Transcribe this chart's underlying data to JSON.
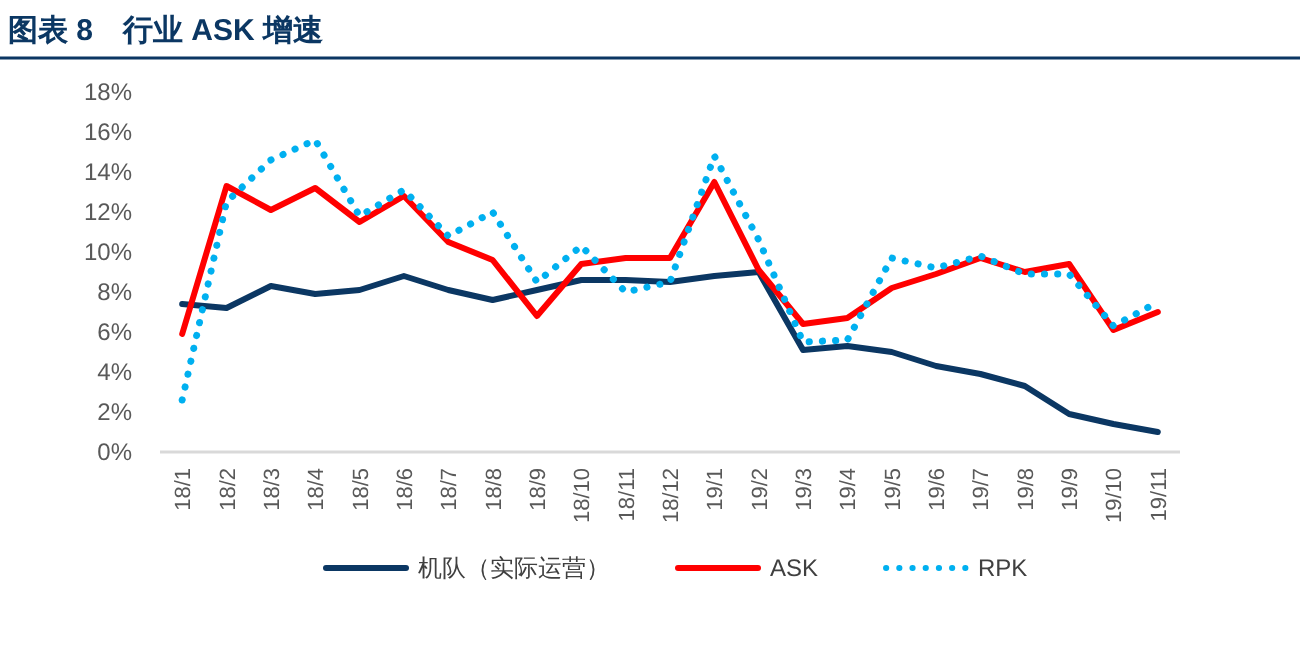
{
  "chart_data": {
    "type": "line",
    "title": "图表 8　行业 ASK 增速",
    "categories": [
      "18/1",
      "18/2",
      "18/3",
      "18/4",
      "18/5",
      "18/6",
      "18/7",
      "18/8",
      "18/9",
      "18/10",
      "18/11",
      "18/12",
      "19/1",
      "19/2",
      "19/3",
      "19/4",
      "19/5",
      "19/6",
      "19/7",
      "19/8",
      "19/9",
      "19/10",
      "19/11"
    ],
    "series": [
      {
        "name": "机队（实际运营）",
        "color": "#0b3763",
        "line_style": "solid",
        "values": [
          7.4,
          7.2,
          8.3,
          7.9,
          8.1,
          8.8,
          8.1,
          7.6,
          8.1,
          8.6,
          8.6,
          8.5,
          8.8,
          9.0,
          5.1,
          5.3,
          5.0,
          4.3,
          3.9,
          3.3,
          1.9,
          1.4,
          1.0
        ]
      },
      {
        "name": "ASK",
        "color": "#ff0000",
        "line_style": "solid",
        "values": [
          5.9,
          13.3,
          12.1,
          13.2,
          11.5,
          12.8,
          10.5,
          9.6,
          6.8,
          9.4,
          9.7,
          9.7,
          13.5,
          9.1,
          6.4,
          6.7,
          8.2,
          8.9,
          9.7,
          9.0,
          9.4,
          6.1,
          7.0
        ]
      },
      {
        "name": "RPK",
        "color": "#00b0f0",
        "line_style": "dotted",
        "values": [
          2.6,
          12.5,
          14.6,
          15.6,
          11.8,
          13.1,
          10.8,
          12.0,
          8.5,
          10.3,
          8.0,
          8.5,
          14.8,
          10.6,
          5.5,
          5.6,
          9.7,
          9.2,
          9.8,
          8.9,
          8.9,
          6.3,
          7.5
        ]
      }
    ],
    "ylim": [
      0,
      18
    ],
    "yticks": [
      {
        "value": 0,
        "label": "0%"
      },
      {
        "value": 2,
        "label": "2%"
      },
      {
        "value": 4,
        "label": "4%"
      },
      {
        "value": 6,
        "label": "6%"
      },
      {
        "value": 8,
        "label": "8%"
      },
      {
        "value": 10,
        "label": "10%"
      },
      {
        "value": 12,
        "label": "12%"
      },
      {
        "value": 14,
        "label": "14%"
      },
      {
        "value": 16,
        "label": "16%"
      },
      {
        "value": 18,
        "label": "18%"
      }
    ],
    "grid": false,
    "legend": "bottom",
    "marker": "none"
  }
}
